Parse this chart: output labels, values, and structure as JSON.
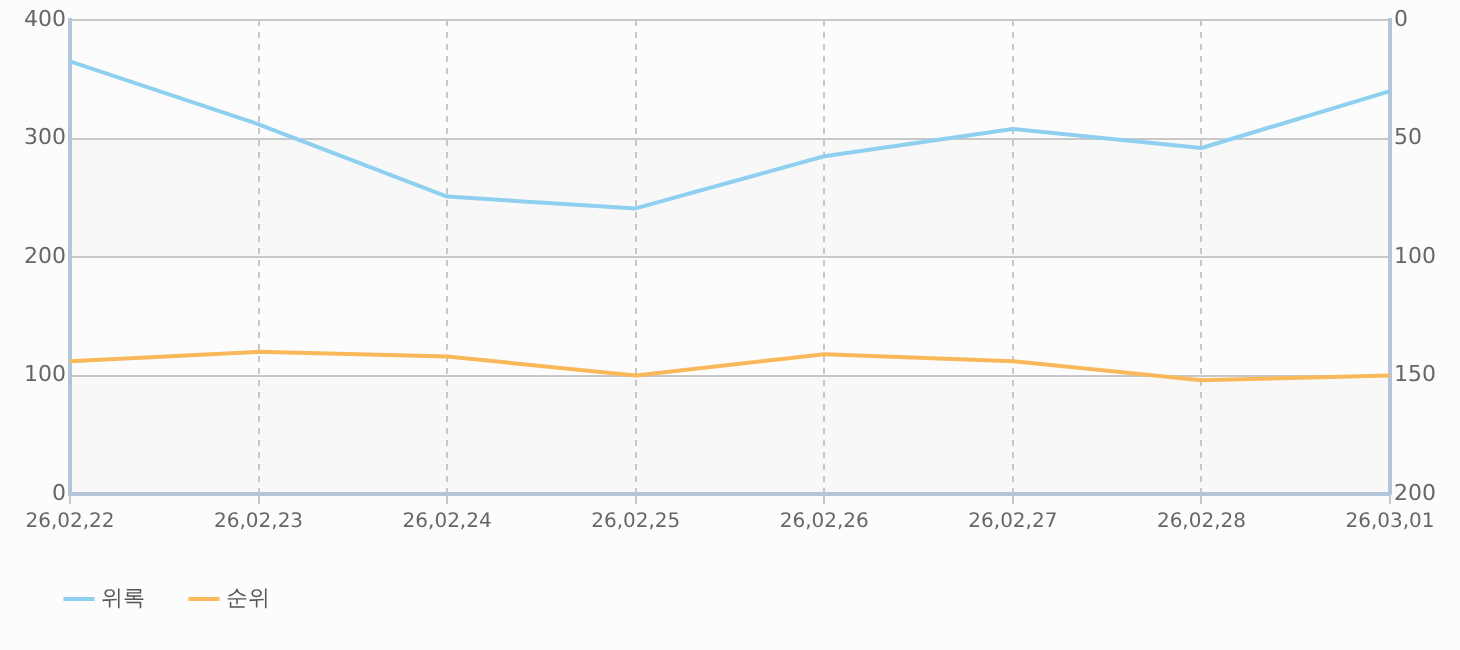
{
  "chart_data": {
    "type": "line",
    "categories": [
      "26,02,22",
      "26,02,23",
      "26,02,24",
      "26,02,25",
      "26,02,26",
      "26,02,27",
      "26,02,28",
      "26,03,01"
    ],
    "series": [
      {
        "name": "위록",
        "color": "#8fd0f0",
        "values": [
          365,
          312,
          251,
          241,
          285,
          308,
          292,
          340
        ]
      },
      {
        "name": "순위",
        "color": "#f9b95a",
        "axis": "y2",
        "values": [
          144,
          140,
          142,
          150,
          141,
          144,
          152,
          150
        ]
      }
    ],
    "ylim": [
      0,
      400
    ],
    "yticks": [
      0,
      100,
      200,
      300,
      400
    ],
    "y2lim": [
      200,
      0
    ],
    "y2ticks": [
      0,
      50,
      100,
      150,
      200
    ],
    "grid": true,
    "legend": "bottom left",
    "marker": "none",
    "line_style": "solid"
  }
}
